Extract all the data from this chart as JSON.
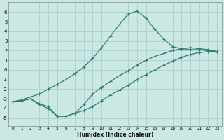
{
  "xlabel": "Humidex (Indice chaleur)",
  "bg_color": "#cce8e5",
  "grid_color": "#aacfcc",
  "line_color": "#2e7d6e",
  "xlim": [
    -0.5,
    23.5
  ],
  "ylim": [
    -5.8,
    7.0
  ],
  "xticks": [
    0,
    1,
    2,
    3,
    4,
    5,
    6,
    7,
    8,
    9,
    10,
    11,
    12,
    13,
    14,
    15,
    16,
    17,
    18,
    19,
    20,
    21,
    22,
    23
  ],
  "yticks": [
    -5,
    -4,
    -3,
    -2,
    -1,
    0,
    1,
    2,
    3,
    4,
    5,
    6
  ],
  "curve_x": [
    0,
    1,
    2,
    3,
    4,
    5,
    6,
    7,
    8,
    9,
    10,
    11,
    12,
    13,
    14,
    15,
    16,
    17,
    18,
    19,
    20,
    21,
    22,
    23
  ],
  "curve_y": [
    -3.3,
    -3.1,
    -2.8,
    -2.5,
    -2.0,
    -1.5,
    -1.0,
    -0.4,
    0.3,
    1.2,
    2.3,
    3.5,
    4.7,
    5.8,
    6.1,
    5.4,
    4.2,
    3.2,
    2.4,
    2.2,
    2.1,
    2.1,
    2.0,
    1.9
  ],
  "line1_x": [
    0,
    1,
    2,
    3,
    4,
    5,
    6,
    7,
    8,
    9,
    10,
    11,
    12,
    13,
    14,
    15,
    16,
    17,
    18,
    19,
    20,
    21,
    22,
    23
  ],
  "line1_y": [
    -3.3,
    -3.2,
    -3.0,
    -3.5,
    -3.8,
    -4.8,
    -4.8,
    -4.5,
    -4.2,
    -3.8,
    -3.2,
    -2.6,
    -2.1,
    -1.6,
    -1.0,
    -0.5,
    0.0,
    0.5,
    0.9,
    1.3,
    1.6,
    1.8,
    1.9,
    1.9
  ],
  "line2_x": [
    0,
    1,
    2,
    3,
    4,
    5,
    6,
    7,
    8,
    9,
    10,
    11,
    12,
    13,
    14,
    15,
    16,
    17,
    18,
    19,
    20,
    21,
    22,
    23
  ],
  "line2_y": [
    -3.3,
    -3.2,
    -3.0,
    -3.6,
    -4.0,
    -4.8,
    -4.8,
    -4.5,
    -3.6,
    -2.5,
    -1.8,
    -1.2,
    -0.6,
    -0.1,
    0.5,
    1.0,
    1.4,
    1.7,
    2.0,
    2.2,
    2.3,
    2.2,
    2.1,
    1.9
  ],
  "spike_x": [
    7
  ],
  "spike_y": [
    0.3
  ]
}
